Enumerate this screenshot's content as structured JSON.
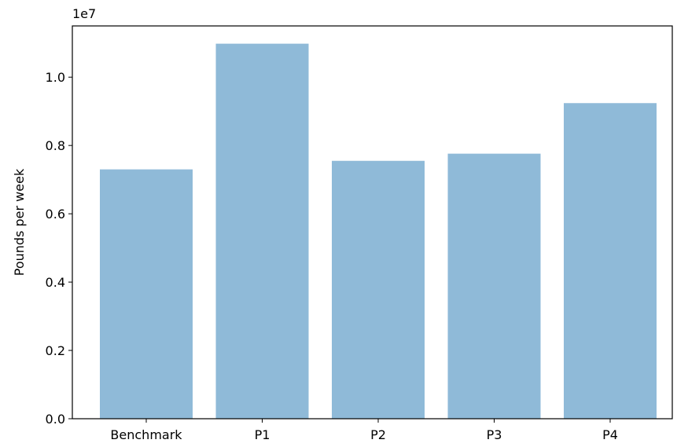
{
  "chart_data": {
    "type": "bar",
    "categories": [
      "Benchmark",
      "P1",
      "P2",
      "P3",
      "P4"
    ],
    "values": [
      7300000,
      10980000,
      7550000,
      7760000,
      9240000
    ],
    "title": "",
    "xlabel": "",
    "ylabel": "Pounds per week",
    "ylim": [
      0,
      11500000
    ],
    "yticks": [
      0,
      2000000,
      4000000,
      6000000,
      8000000,
      10000000
    ],
    "ytick_labels": [
      "0.0",
      "0.2",
      "0.4",
      "0.6",
      "0.8",
      "1.0"
    ],
    "offset_label": "1e7",
    "bar_color": "#8fbad8",
    "grid": false
  }
}
